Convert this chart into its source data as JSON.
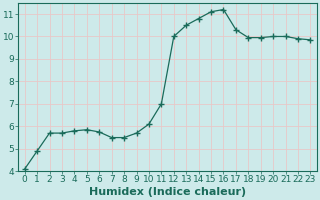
{
  "x": [
    0,
    1,
    2,
    3,
    4,
    5,
    6,
    7,
    8,
    9,
    10,
    11,
    12,
    13,
    14,
    15,
    16,
    17,
    18,
    19,
    20,
    21,
    22,
    23
  ],
  "y": [
    4.1,
    4.9,
    5.7,
    5.7,
    5.8,
    5.85,
    5.75,
    5.5,
    5.5,
    5.7,
    6.1,
    7.0,
    10.0,
    10.5,
    10.8,
    11.1,
    11.2,
    10.3,
    9.95,
    9.95,
    10.0,
    10.0,
    9.9,
    9.85
  ],
  "xlabel": "Humidex (Indice chaleur)",
  "ylim": [
    4,
    11.5
  ],
  "xlim": [
    -0.5,
    23.5
  ],
  "yticks": [
    4,
    5,
    6,
    7,
    8,
    9,
    10,
    11
  ],
  "xticks": [
    0,
    1,
    2,
    3,
    4,
    5,
    6,
    7,
    8,
    9,
    10,
    11,
    12,
    13,
    14,
    15,
    16,
    17,
    18,
    19,
    20,
    21,
    22,
    23
  ],
  "xtick_labels": [
    "0",
    "1",
    "2",
    "3",
    "4",
    "5",
    "6",
    "7",
    "8",
    "9",
    "10",
    "11",
    "12",
    "13",
    "14",
    "15",
    "16",
    "17",
    "18",
    "19",
    "20",
    "21",
    "22",
    "23"
  ],
  "line_color": "#1a6b5a",
  "marker": "+",
  "marker_size": 4,
  "bg_color": "#cdeaea",
  "grid_color": "#e8c8c8",
  "xlabel_fontsize": 8,
  "tick_fontsize": 6.5
}
